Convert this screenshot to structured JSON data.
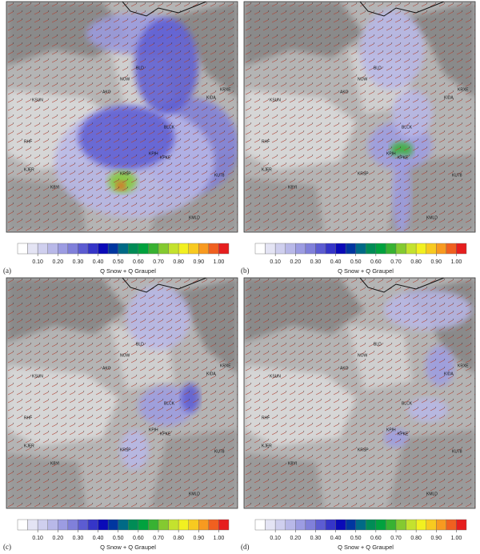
{
  "panels": [
    {
      "label": "(a)"
    },
    {
      "label": "(b)"
    },
    {
      "label": "(c)"
    },
    {
      "label": "(d)"
    }
  ],
  "stations": [
    "BLD",
    "NOW",
    "KRXE",
    "AKO",
    "KSUN",
    "KIDA",
    "BLCK",
    "RHF",
    "KPIH",
    "KPKE",
    "KJER",
    "KRSP",
    "KBYI",
    "KU78",
    "KMLD"
  ],
  "colorbar": {
    "title": "Q Snow + Q Graupel",
    "range": [
      0,
      1.05
    ],
    "colors": [
      "#ffffff",
      "#e4e4f4",
      "#cfcfee",
      "#b8b8e8",
      "#9c9ce2",
      "#8080da",
      "#5c5cd2",
      "#3535c8",
      "#0a0ab8",
      "#0036a0",
      "#006a86",
      "#008c56",
      "#00a23e",
      "#38b232",
      "#84ca30",
      "#c4e22e",
      "#f2f020",
      "#f8ca20",
      "#f89a20",
      "#f06020",
      "#e61e1e"
    ],
    "ticks": [
      {
        "value": 0.1,
        "label": "0.10"
      },
      {
        "value": 0.2,
        "label": "0.20"
      },
      {
        "value": 0.3,
        "label": "0.30"
      },
      {
        "value": 0.4,
        "label": "0.40"
      },
      {
        "value": 0.5,
        "label": "0.50"
      },
      {
        "value": 0.6,
        "label": "0.60"
      },
      {
        "value": 0.7,
        "label": "0.70"
      },
      {
        "value": 0.8,
        "label": "0.80"
      },
      {
        "value": 0.9,
        "label": "0.90"
      },
      {
        "value": 1.0,
        "label": "1.00"
      }
    ]
  }
}
